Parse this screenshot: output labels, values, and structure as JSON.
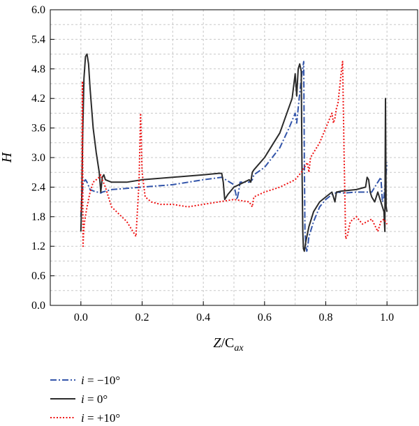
{
  "chart_data": {
    "type": "line",
    "xlabel_main": "Z",
    "xlabel_sep": "/C",
    "xlabel_sub": "ax",
    "ylabel": "H",
    "xlim": [
      -0.1,
      1.1
    ],
    "ylim": [
      0.0,
      6.0
    ],
    "xticks": [
      "0.0",
      "0.2",
      "0.4",
      "0.6",
      "0.8",
      "1.0"
    ],
    "xtick_values": [
      0.0,
      0.2,
      0.4,
      0.6,
      0.8,
      1.0
    ],
    "yticks": [
      "0.0",
      "0.6",
      "1.2",
      "1.8",
      "2.4",
      "3.0",
      "3.6",
      "4.2",
      "4.8",
      "5.4",
      "6.0"
    ],
    "ytick_values": [
      0.0,
      0.6,
      1.2,
      1.8,
      2.4,
      3.0,
      3.6,
      4.2,
      4.8,
      5.4,
      6.0
    ],
    "grid": true,
    "legend_position": "bottom-left, below plot",
    "series": [
      {
        "name": "i = −10°",
        "legend_italic": "i",
        "legend_rest": " = −10°",
        "color": "#3355aa",
        "dash": "dashdot",
        "x": [
          0.0,
          0.003,
          0.008,
          0.015,
          0.02,
          0.03,
          0.05,
          0.06,
          0.065,
          0.07,
          0.1,
          0.2,
          0.3,
          0.4,
          0.46,
          0.5,
          0.51,
          0.515,
          0.52,
          0.55,
          0.56,
          0.565,
          0.6,
          0.65,
          0.68,
          0.7,
          0.705,
          0.71,
          0.72,
          0.728,
          0.73,
          0.732,
          0.735,
          0.738,
          0.74,
          0.745,
          0.76,
          0.78,
          0.8,
          0.82,
          0.84,
          0.86,
          0.9,
          0.95,
          0.97,
          0.98,
          0.985,
          0.99,
          0.995,
          1.0
        ],
        "y": [
          1.8,
          2.2,
          2.5,
          2.55,
          2.5,
          2.35,
          2.3,
          2.3,
          2.28,
          2.3,
          2.35,
          2.4,
          2.45,
          2.55,
          2.6,
          2.45,
          2.15,
          2.3,
          2.5,
          2.5,
          2.55,
          2.65,
          2.8,
          3.2,
          3.6,
          3.9,
          3.7,
          4.0,
          4.6,
          4.95,
          3.0,
          1.5,
          1.2,
          1.1,
          1.15,
          1.4,
          1.7,
          2.0,
          2.15,
          2.25,
          2.3,
          2.28,
          2.3,
          2.3,
          2.5,
          2.6,
          2.1,
          2.2,
          2.55,
          2.9
        ]
      },
      {
        "name": "i = 0°",
        "legend_italic": "i",
        "legend_rest": " = 0°",
        "color": "#2b2b2b",
        "dash": "solid",
        "x": [
          0.0,
          0.003,
          0.006,
          0.01,
          0.015,
          0.02,
          0.025,
          0.03,
          0.04,
          0.05,
          0.06,
          0.065,
          0.07,
          0.075,
          0.08,
          0.1,
          0.15,
          0.2,
          0.3,
          0.4,
          0.45,
          0.46,
          0.465,
          0.47,
          0.48,
          0.5,
          0.55,
          0.555,
          0.56,
          0.565,
          0.6,
          0.65,
          0.69,
          0.7,
          0.705,
          0.71,
          0.715,
          0.72,
          0.722,
          0.725,
          0.727,
          0.73,
          0.735,
          0.745,
          0.76,
          0.78,
          0.8,
          0.82,
          0.825,
          0.83,
          0.835,
          0.85,
          0.9,
          0.93,
          0.935,
          0.94,
          0.945,
          0.95,
          0.96,
          0.97,
          0.98,
          0.99,
          0.993,
          0.995,
          0.997,
          1.0
        ],
        "y": [
          1.5,
          2.2,
          3.5,
          4.6,
          5.05,
          5.1,
          4.9,
          4.4,
          3.6,
          3.1,
          2.7,
          2.3,
          2.6,
          2.65,
          2.55,
          2.5,
          2.5,
          2.55,
          2.6,
          2.65,
          2.68,
          2.68,
          2.5,
          2.15,
          2.25,
          2.4,
          2.55,
          2.5,
          2.7,
          2.75,
          3.0,
          3.5,
          4.2,
          4.7,
          4.25,
          4.8,
          4.9,
          4.75,
          3.0,
          1.5,
          1.15,
          1.1,
          1.3,
          1.6,
          1.9,
          2.1,
          2.2,
          2.3,
          2.2,
          2.1,
          2.3,
          2.32,
          2.35,
          2.4,
          2.6,
          2.55,
          2.3,
          2.2,
          2.1,
          2.3,
          2.1,
          1.9,
          1.5,
          4.2,
          2.0,
          1.9
        ]
      },
      {
        "name": "i = +10°",
        "legend_italic": "i",
        "legend_rest": " = +10°",
        "color": "#ee1111",
        "dash": "dotted",
        "x": [
          0.0,
          0.003,
          0.005,
          0.007,
          0.009,
          0.012,
          0.02,
          0.03,
          0.04,
          0.05,
          0.06,
          0.065,
          0.07,
          0.08,
          0.1,
          0.15,
          0.18,
          0.19,
          0.195,
          0.2,
          0.21,
          0.23,
          0.26,
          0.3,
          0.35,
          0.4,
          0.45,
          0.5,
          0.55,
          0.56,
          0.565,
          0.6,
          0.65,
          0.7,
          0.72,
          0.74,
          0.745,
          0.75,
          0.76,
          0.78,
          0.8,
          0.82,
          0.825,
          0.83,
          0.835,
          0.84,
          0.85,
          0.855,
          0.86,
          0.865,
          0.87,
          0.88,
          0.9,
          0.92,
          0.95,
          0.97,
          0.98,
          0.99,
          1.0
        ],
        "y": [
          1.9,
          2.2,
          4.55,
          1.2,
          1.5,
          1.7,
          2.0,
          2.3,
          2.5,
          2.55,
          2.6,
          2.65,
          2.55,
          2.4,
          2.0,
          1.7,
          1.4,
          2.5,
          3.9,
          2.7,
          2.2,
          2.1,
          2.05,
          2.05,
          2.0,
          2.05,
          2.1,
          2.15,
          2.1,
          2.0,
          2.2,
          2.3,
          2.4,
          2.55,
          2.7,
          2.9,
          2.7,
          3.0,
          3.1,
          3.3,
          3.6,
          3.9,
          3.7,
          3.8,
          4.0,
          4.1,
          4.7,
          4.95,
          3.0,
          1.35,
          1.4,
          1.7,
          1.8,
          1.65,
          1.75,
          1.5,
          1.7,
          1.75,
          1.65
        ]
      }
    ]
  }
}
